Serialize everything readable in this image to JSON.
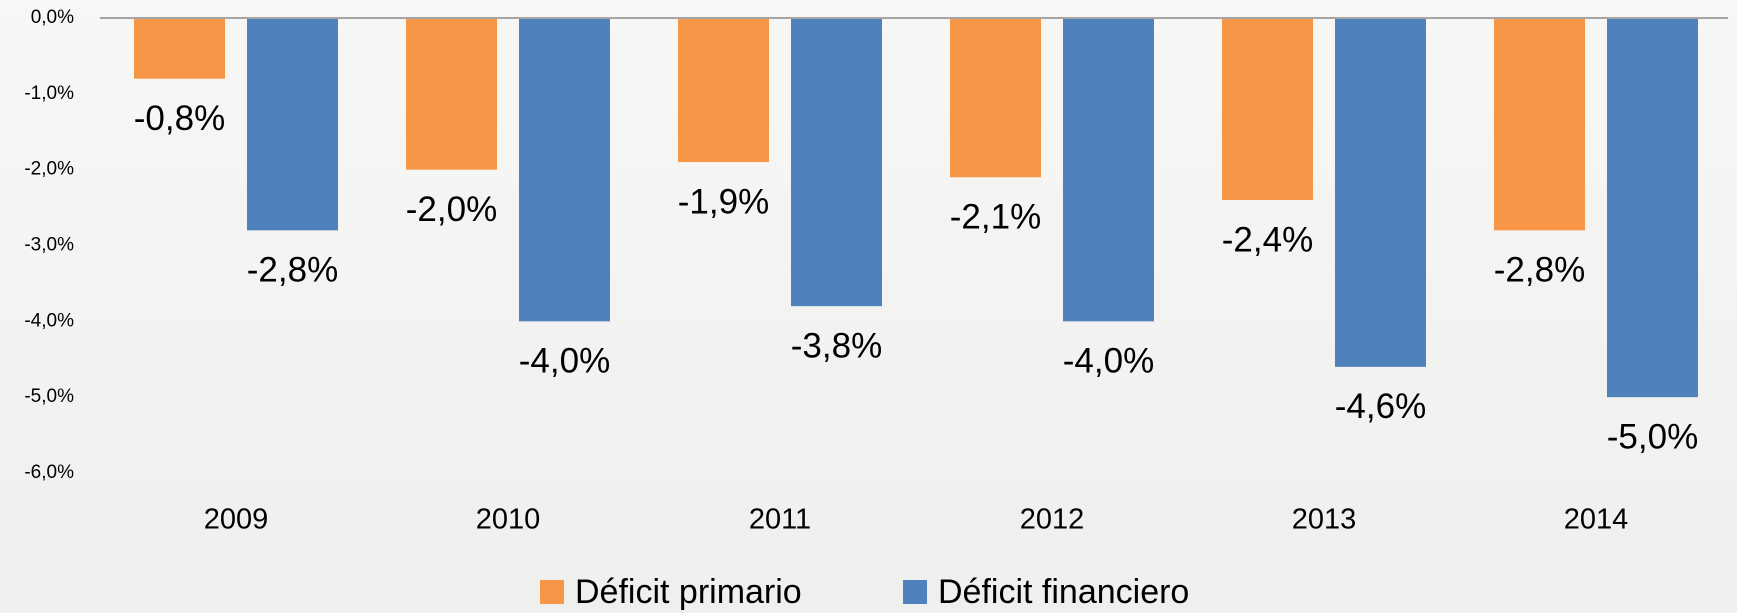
{
  "chart_data": {
    "type": "bar",
    "categories": [
      "2009",
      "2010",
      "2011",
      "2012",
      "2013",
      "2014"
    ],
    "series": [
      {
        "name": "Déficit primario",
        "color": "#f79646",
        "values": [
          -0.8,
          -2.0,
          -1.9,
          -2.1,
          -2.4,
          -2.8
        ],
        "value_labels": [
          "-0,8%",
          "-2,0%",
          "-1,9%",
          "-2,1%",
          "-2,4%",
          "-2,8%"
        ]
      },
      {
        "name": "Déficit financiero",
        "color": "#4f81bd",
        "values": [
          -2.8,
          -4.0,
          -3.8,
          -4.0,
          -4.6,
          -5.0
        ],
        "value_labels": [
          "-2,8%",
          "-4,0%",
          "-3,8%",
          "-4,0%",
          "-4,6%",
          "-5,0%"
        ]
      }
    ],
    "ylim": [
      -6,
      0
    ],
    "yticks": [
      {
        "value": 0,
        "label": "0,0%"
      },
      {
        "value": -1,
        "label": "-1,0%"
      },
      {
        "value": -2,
        "label": "-2,0%"
      },
      {
        "value": -3,
        "label": "-3,0%"
      },
      {
        "value": -4,
        "label": "-4,0%"
      },
      {
        "value": -5,
        "label": "-5,0%"
      },
      {
        "value": -6,
        "label": "-6,0%"
      }
    ],
    "grid": false,
    "legend": "bottom"
  }
}
